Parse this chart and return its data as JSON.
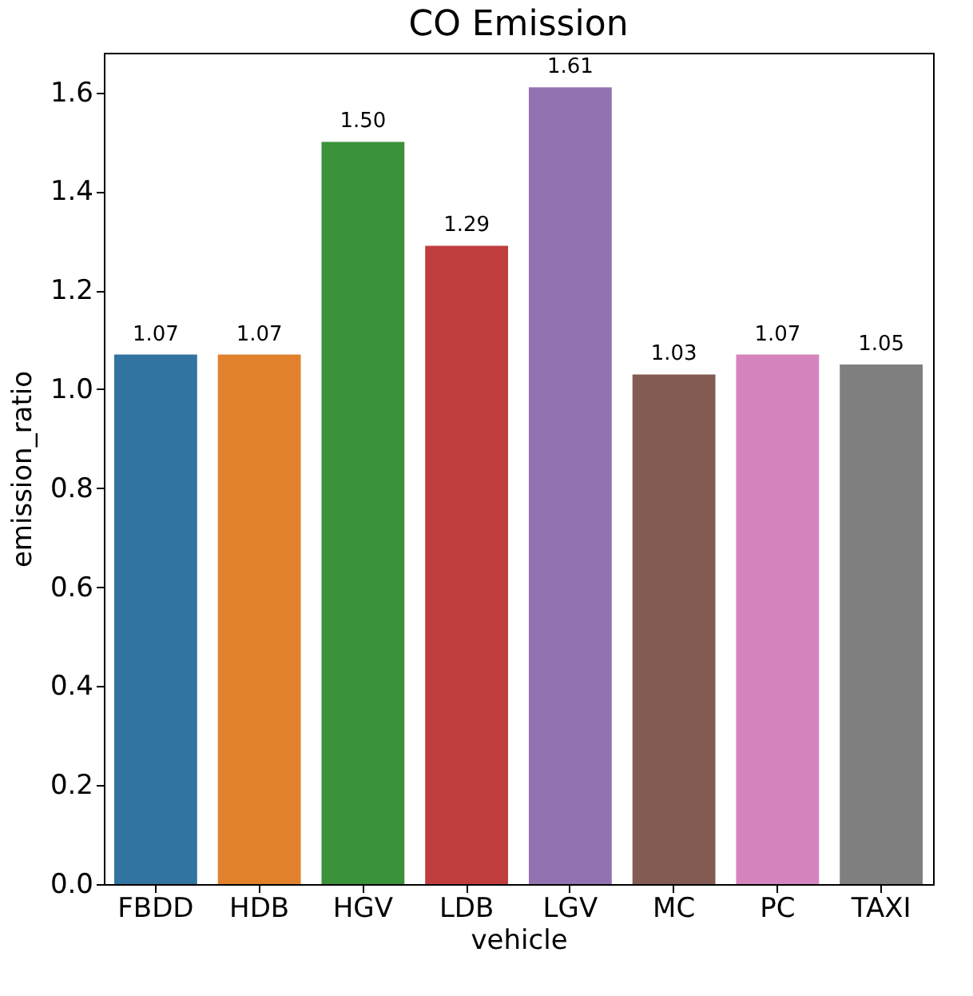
{
  "chart_data": {
    "type": "bar",
    "title": "CO Emission",
    "xlabel": "vehicle",
    "ylabel": "emission_ratio",
    "categories": [
      "FBDD",
      "HDB",
      "HGV",
      "LDB",
      "LGV",
      "MC",
      "PC",
      "TAXI"
    ],
    "values": [
      1.07,
      1.07,
      1.5,
      1.29,
      1.61,
      1.03,
      1.07,
      1.05
    ],
    "value_labels": [
      "1.07",
      "1.07",
      "1.50",
      "1.29",
      "1.61",
      "1.03",
      "1.07",
      "1.05"
    ],
    "colors": [
      "#3274a1",
      "#e1812c",
      "#3a923a",
      "#c03d3e",
      "#9372b2",
      "#845b53",
      "#d684bd",
      "#7f7f7f"
    ],
    "ylim": [
      0,
      1.68
    ],
    "yticks": [
      {
        "value": 0,
        "label": "0.0"
      },
      0.2,
      0.4,
      0.6,
      0.8,
      {
        "value": 1,
        "label": "1.0"
      },
      1.2,
      1.4,
      1.6
    ],
    "grid": false,
    "legend": false
  }
}
